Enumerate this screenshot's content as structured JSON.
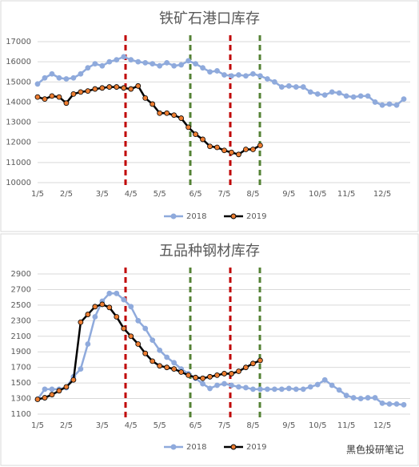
{
  "chart_data": [
    {
      "type": "line",
      "title": "铁矿石港口库存",
      "categories": [
        "1/5",
        null,
        null,
        null,
        "2/5",
        null,
        null,
        null,
        null,
        "3/5",
        null,
        null,
        null,
        "4/5",
        null,
        null,
        null,
        "5/5",
        null,
        null,
        null,
        null,
        "6/5",
        null,
        null,
        null,
        "7/5",
        null,
        null,
        null,
        "8/5",
        null,
        null,
        null,
        null,
        "9/5",
        null,
        null,
        null,
        "10/5",
        null,
        null,
        null,
        "11/5",
        null,
        null,
        null,
        null,
        "12/5",
        null,
        null,
        null
      ],
      "series": [
        {
          "name": "2018",
          "color": "#8faadc",
          "marker_color": "#8faadc",
          "values": [
            14900,
            15200,
            15400,
            15200,
            15150,
            15200,
            15400,
            15700,
            15900,
            15800,
            16000,
            16100,
            16250,
            16100,
            16000,
            15950,
            15900,
            15800,
            15950,
            15800,
            15850,
            16050,
            15900,
            15700,
            15500,
            15550,
            15350,
            15300,
            15350,
            15300,
            15400,
            15300,
            15150,
            15000,
            14750,
            14800,
            14750,
            14750,
            14500,
            14400,
            14350,
            14500,
            14450,
            14300,
            14250,
            14300,
            14300,
            14000,
            13850,
            13900,
            13850,
            14150
          ]
        },
        {
          "name": "2019",
          "color": "#000000",
          "marker_color": "#ed7d31",
          "values": [
            14250,
            14150,
            14300,
            14250,
            13950,
            14400,
            14500,
            14550,
            14650,
            14700,
            14750,
            14750,
            14700,
            14650,
            14800,
            14200,
            13900,
            13450,
            13450,
            13350,
            13200,
            12750,
            12400,
            12150,
            11800,
            11750,
            11600,
            11500,
            11400,
            11650,
            11650,
            11850,
            null,
            null,
            null,
            null,
            null,
            null,
            null,
            null,
            null,
            null,
            null,
            null,
            null,
            null,
            null,
            null,
            null,
            null,
            null,
            null
          ]
        }
      ],
      "ylim": [
        10000,
        17000
      ],
      "yticks": [
        10000,
        11000,
        12000,
        13000,
        14000,
        15000,
        16000,
        17000
      ],
      "grid": true,
      "legend": "bottom"
    },
    {
      "type": "line",
      "title": "五品种钢材库存",
      "categories": [
        "1/5",
        null,
        null,
        null,
        "2/5",
        null,
        null,
        null,
        null,
        "3/5",
        null,
        null,
        null,
        "4/5",
        null,
        null,
        null,
        "5/5",
        null,
        null,
        null,
        null,
        "6/5",
        null,
        null,
        null,
        "7/5",
        null,
        null,
        null,
        "8/5",
        null,
        null,
        null,
        null,
        "9/5",
        null,
        null,
        null,
        "10/5",
        null,
        null,
        null,
        "11/5",
        null,
        null,
        null,
        null,
        "12/5",
        null,
        null,
        null
      ],
      "series": [
        {
          "name": "2018",
          "color": "#8faadc",
          "marker_color": "#8faadc",
          "values": [
            1290,
            1420,
            1420,
            1420,
            1440,
            1580,
            1680,
            2000,
            2350,
            2550,
            2650,
            2650,
            2570,
            2480,
            2300,
            2200,
            2050,
            1920,
            1830,
            1760,
            1680,
            1620,
            1560,
            1490,
            1430,
            1470,
            1490,
            1470,
            1450,
            1440,
            1420,
            1420,
            1420,
            1420,
            1420,
            1430,
            1420,
            1420,
            1450,
            1480,
            1540,
            1470,
            1410,
            1340,
            1310,
            1300,
            1310,
            1310,
            1240,
            1230,
            1230,
            1220
          ]
        },
        {
          "name": "2019",
          "color": "#000000",
          "marker_color": "#ed7d31",
          "values": [
            1290,
            1310,
            1350,
            1400,
            1450,
            1540,
            2280,
            2380,
            2480,
            2510,
            2470,
            2350,
            2200,
            2100,
            2000,
            1880,
            1780,
            1720,
            1700,
            1680,
            1640,
            1600,
            1570,
            1560,
            1580,
            1600,
            1620,
            1620,
            1650,
            1700,
            1750,
            1790,
            null,
            null,
            null,
            null,
            null,
            null,
            null,
            null,
            null,
            null,
            null,
            null,
            null,
            null,
            null,
            null,
            null,
            null,
            null,
            null
          ]
        }
      ],
      "ylim": [
        1100,
        2900
      ],
      "yticks": [
        1100,
        1300,
        1500,
        1700,
        1900,
        2100,
        2300,
        2500,
        2700,
        2900
      ],
      "grid": true,
      "legend": "bottom"
    }
  ],
  "watermark": "黑色投研笔记"
}
